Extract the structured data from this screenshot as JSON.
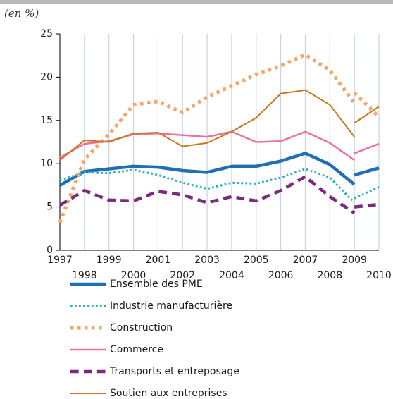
{
  "chart_data": {
    "type": "line",
    "subtitle": "(en %)",
    "x": [
      1997,
      1998,
      1999,
      2000,
      2001,
      2002,
      2003,
      2004,
      2005,
      2006,
      2007,
      2008,
      2009,
      2009,
      2009,
      2010
    ],
    "series": [
      {
        "name": "Ensemble des PME",
        "color": "#1f6fb2",
        "style": "solid",
        "width": 4.5,
        "values": [
          7.5,
          9.1,
          9.4,
          9.7,
          9.6,
          9.2,
          9.0,
          9.7,
          9.7,
          10.3,
          11.2,
          9.9,
          7.6,
          null,
          8.7,
          9.5
        ]
      },
      {
        "name": "Industrie manufacturière",
        "color": "#2ab3b0",
        "style": "dotted",
        "width": 3,
        "values": [
          8.1,
          9.0,
          8.9,
          9.3,
          8.7,
          7.8,
          7.1,
          7.8,
          7.7,
          8.4,
          9.4,
          8.4,
          5.5,
          null,
          6.0,
          7.3
        ]
      },
      {
        "name": "Construction",
        "color": "#f5a56a",
        "style": "dotted",
        "width": 5,
        "values": [
          3.2,
          10.5,
          13.4,
          16.8,
          17.2,
          15.9,
          17.7,
          19.0,
          20.3,
          21.3,
          22.6,
          20.8,
          17.0,
          null,
          18.2,
          15.4
        ]
      },
      {
        "name": "Commerce",
        "color": "#ee6f9e",
        "style": "solid",
        "width": 2.5,
        "values": [
          10.7,
          12.3,
          12.6,
          13.4,
          13.5,
          13.3,
          13.1,
          13.7,
          12.5,
          12.6,
          13.7,
          12.4,
          10.4,
          null,
          11.2,
          12.3
        ]
      },
      {
        "name": "Transports et entreposage",
        "color": "#7c2a7b",
        "style": "dashed",
        "width": 4.5,
        "values": [
          5.2,
          6.9,
          5.8,
          5.7,
          6.8,
          6.4,
          5.5,
          6.2,
          5.7,
          6.9,
          8.5,
          6.2,
          4.3,
          null,
          5.0,
          5.3
        ]
      },
      {
        "name": "Soutien aux entreprises",
        "color": "#c8781c",
        "style": "solid",
        "width": 2,
        "values": [
          10.4,
          12.7,
          12.5,
          13.5,
          13.6,
          12.0,
          12.4,
          13.7,
          15.3,
          18.1,
          18.5,
          16.8,
          13.1,
          null,
          14.7,
          16.6
        ]
      }
    ],
    "xlim": [
      1997,
      2010
    ],
    "xticks": [
      1997,
      1998,
      1999,
      2000,
      2001,
      2002,
      2003,
      2004,
      2005,
      2006,
      2007,
      2008,
      2009,
      2010
    ],
    "ylim": [
      0,
      25
    ],
    "yticks": [
      0,
      5,
      10,
      15,
      20,
      25
    ],
    "grid": "x"
  }
}
